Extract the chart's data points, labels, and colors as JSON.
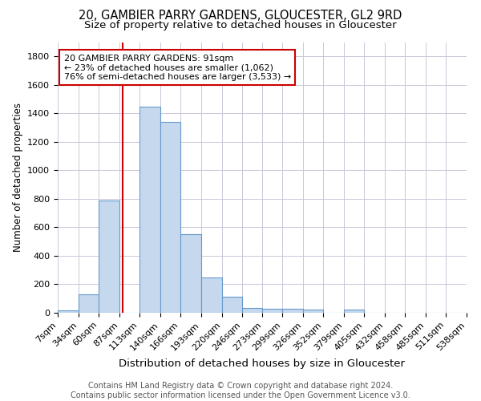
{
  "title1": "20, GAMBIER PARRY GARDENS, GLOUCESTER, GL2 9RD",
  "title2": "Size of property relative to detached houses in Gloucester",
  "xlabel": "Distribution of detached houses by size in Gloucester",
  "ylabel": "Number of detached properties",
  "bar_color": "#c5d8ed",
  "bar_edge_color": "#6699cc",
  "background_color": "#ffffff",
  "grid_color": "#c8c8d8",
  "annotation_line_color": "#cc0000",
  "property_size": 91,
  "annotation_text": "20 GAMBIER PARRY GARDENS: 91sqm\n← 23% of detached houses are smaller (1,062)\n76% of semi-detached houses are larger (3,533) →",
  "bin_edges": [
    7,
    34,
    60,
    87,
    113,
    140,
    166,
    193,
    220,
    246,
    273,
    299,
    326,
    352,
    379,
    405,
    432,
    458,
    485,
    511,
    538
  ],
  "bar_heights": [
    15,
    130,
    790,
    0,
    1445,
    1340,
    550,
    250,
    110,
    35,
    30,
    30,
    20,
    0,
    20,
    0,
    0,
    0,
    0,
    0
  ],
  "ylim": [
    0,
    1900
  ],
  "yticks": [
    0,
    200,
    400,
    600,
    800,
    1000,
    1200,
    1400,
    1600,
    1800
  ],
  "footer_text": "Contains HM Land Registry data © Crown copyright and database right 2024.\nContains public sector information licensed under the Open Government Licence v3.0.",
  "title1_fontsize": 10.5,
  "title2_fontsize": 9.5,
  "xlabel_fontsize": 9.5,
  "ylabel_fontsize": 8.5,
  "tick_fontsize": 8,
  "annotation_fontsize": 8,
  "footer_fontsize": 7
}
